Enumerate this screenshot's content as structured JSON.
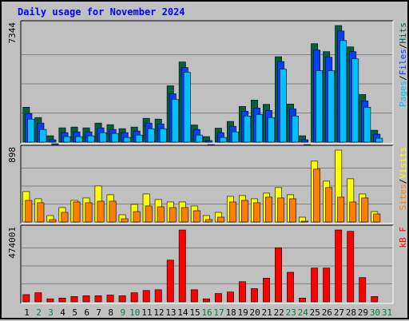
{
  "chart_data": {
    "title": "Daily usage for November 2024",
    "type": "bar",
    "days": [
      "1",
      "2",
      "3",
      "4",
      "5",
      "6",
      "7",
      "8",
      "9",
      "10",
      "11",
      "12",
      "13",
      "14",
      "15",
      "16",
      "17",
      "18",
      "19",
      "20",
      "21",
      "22",
      "23",
      "24",
      "25",
      "26",
      "27",
      "28",
      "29",
      "30",
      "31"
    ],
    "weekend_days": [
      "2",
      "3",
      "9",
      "10",
      "16",
      "17",
      "23",
      "24",
      "30",
      "31"
    ],
    "colors": {
      "pages": "#00c0ff",
      "files": "#0040ff",
      "hits": "#006040",
      "sites": "#ff8000",
      "visits": "#ffff00",
      "kbytes": "#ff0000",
      "weekday_label": "#000000",
      "weekend_label": "#008040",
      "title": "#0000ff"
    },
    "panels": [
      {
        "id": "hits_files_pages",
        "max_label": "7344",
        "ymax": 7344,
        "legend": [
          {
            "text": "Pages",
            "color": "#00c0ff"
          },
          {
            "text": "/",
            "color": "#000000"
          },
          {
            "text": "Files",
            "color": "#0040ff"
          },
          {
            "text": "/",
            "color": "#000000"
          },
          {
            "text": "Hits",
            "color": "#006040"
          }
        ],
        "series": [
          {
            "name": "Hits",
            "color": "#006040",
            "values": [
              2200,
              1550,
              400,
              900,
              950,
              900,
              1200,
              1100,
              850,
              950,
              1500,
              1450,
              3550,
              5050,
              1080,
              350,
              880,
              1300,
              2250,
              2650,
              2380,
              5380,
              2400,
              400,
              6200,
              5700,
              7344,
              6000,
              3000,
              750,
              null
            ]
          },
          {
            "name": "Files",
            "color": "#0040ff",
            "values": [
              2000,
              1400,
              350,
              800,
              850,
              850,
              1100,
              1000,
              800,
              900,
              1400,
              1350,
              3250,
              4900,
              1000,
              300,
              800,
              1200,
              2150,
              2350,
              2200,
              5280,
              2300,
              350,
              6000,
              5550,
              7200,
              5900,
              2800,
              700,
              null
            ]
          },
          {
            "name": "Pages",
            "color": "#00c0ff",
            "values": [
              1850,
              1200,
              300,
              750,
              750,
              800,
              1000,
              950,
              700,
              850,
              1250,
              1250,
              3100,
              4800,
              850,
              250,
              700,
              1050,
              2050,
              2150,
              1950,
              5000,
              2050,
              250,
              4900,
              4900,
              6800,
              5650,
              2600,
              650,
              null
            ]
          }
        ]
      },
      {
        "id": "visits_sites",
        "max_label": "898",
        "ymax": 898,
        "legend": [
          {
            "text": "Sites",
            "color": "#ff8000"
          },
          {
            "text": "/",
            "color": "#000000"
          },
          {
            "text": "Visits",
            "color": "#ffff00"
          }
        ],
        "series": [
          {
            "name": "Visits",
            "color": "#ffff00",
            "values": [
              380,
              290,
              80,
              180,
              270,
              300,
              450,
              340,
              90,
              220,
              350,
              280,
              250,
              250,
              200,
              80,
              120,
              320,
              330,
              290,
              360,
              430,
              340,
              60,
              760,
              510,
              898,
              540,
              350,
              130,
              null
            ]
          },
          {
            "name": "Sites",
            "color": "#ff8000",
            "values": [
              310,
              280,
              70,
              160,
              290,
              280,
              300,
              300,
              80,
              170,
              240,
              230,
              220,
              220,
              180,
              70,
              100,
              290,
              310,
              280,
              350,
              340,
              330,
              50,
              700,
              470,
              350,
              290,
              340,
              140,
              null
            ]
          }
        ]
      },
      {
        "id": "kbytes",
        "max_label": "474001",
        "ymax": 474001,
        "legend": [
          {
            "text": "kB F",
            "color": "#ff0000"
          }
        ],
        "series": [
          {
            "name": "kB F",
            "color": "#ff0000",
            "values": [
              48000,
              60000,
              20000,
              25000,
              35000,
              40000,
              40000,
              45000,
              40000,
              60000,
              75000,
              80000,
              275000,
              474001,
              80000,
              20000,
              55000,
              65000,
              133000,
              87000,
              156000,
              357000,
              195000,
              25000,
              223000,
              223000,
              474001,
              465000,
              160000,
              35000,
              null
            ]
          }
        ]
      }
    ]
  }
}
